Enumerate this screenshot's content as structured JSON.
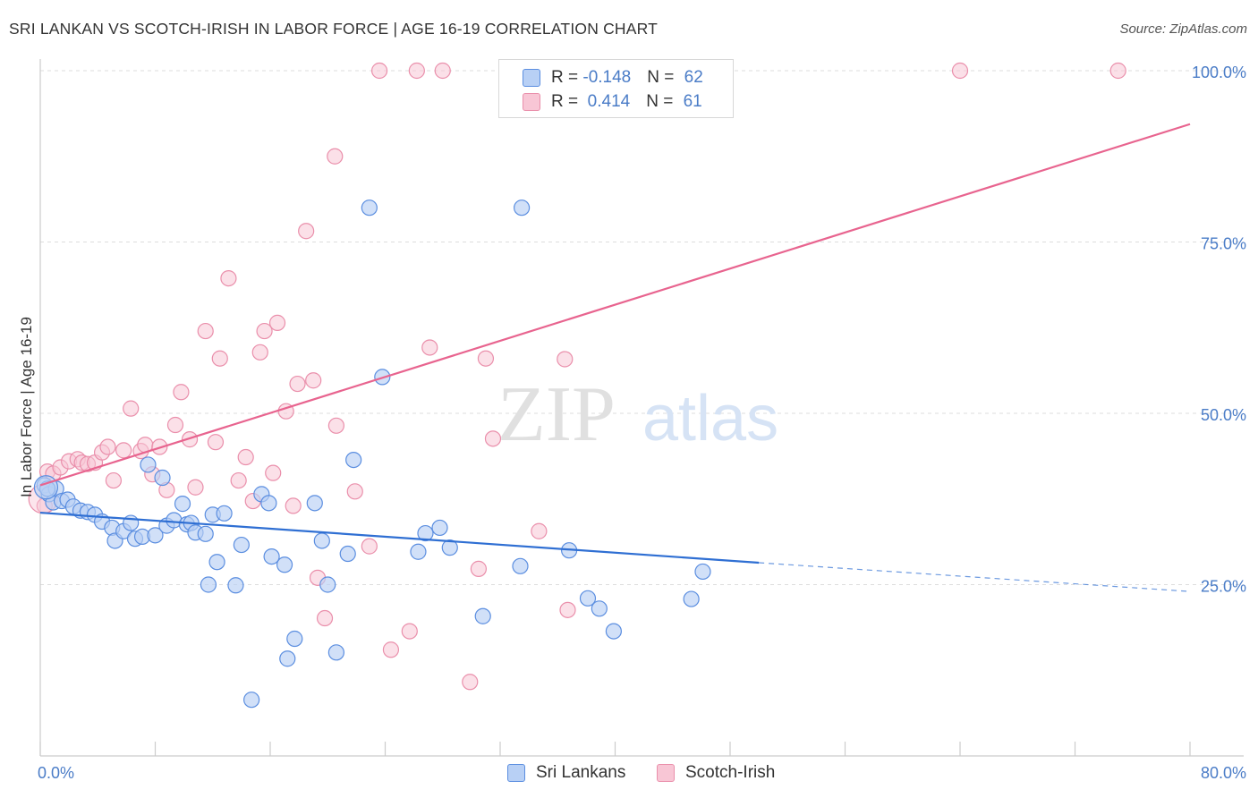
{
  "title": "SRI LANKAN VS SCOTCH-IRISH IN LABOR FORCE | AGE 16-19 CORRELATION CHART",
  "source": "Source: ZipAtlas.com",
  "watermark": {
    "zip": "ZIP",
    "atlas": "atlas"
  },
  "legend": {
    "rows": [
      {
        "r_label": "R = ",
        "r_value": "-0.148",
        "n_label": "N = ",
        "n_value": "62"
      },
      {
        "r_label": "R = ",
        "r_value": " 0.414",
        "n_label": "N = ",
        "n_value": "61"
      }
    ]
  },
  "bottom_legend": [
    "Sri Lankans",
    "Scotch-Irish"
  ],
  "colors": {
    "blue_fill": "#b8d0f5",
    "blue_stroke": "#5b8ee0",
    "blue_line": "#2f6fd3",
    "pink_fill": "#f8c6d5",
    "pink_stroke": "#ea8fab",
    "pink_line": "#e8648f",
    "grid": "#dddddd",
    "tick_text": "#4a7cc7"
  },
  "chart_data": {
    "type": "scatter",
    "title": "SRI LANKAN VS SCOTCH-IRISH IN LABOR FORCE | AGE 16-19 CORRELATION CHART",
    "xlabel": "",
    "ylabel": "In Labor Force | Age 16-19",
    "xlim": [
      0,
      80
    ],
    "ylim": [
      0,
      105
    ],
    "x_tick_labels": [
      "0.0%",
      "80.0%"
    ],
    "y_ticks": [
      25,
      50,
      75,
      100
    ],
    "y_tick_labels": [
      "25.0%",
      "50.0%",
      "75.0%",
      "100.0%"
    ],
    "grid": "horizontal dashed",
    "series": [
      {
        "name": "Sri Lankans",
        "r": -0.148,
        "n": 62,
        "trend": {
          "x0": 0,
          "y0": 35.5,
          "x1": 50,
          "y1": 28.2,
          "dash_x1": 80,
          "dash_y1": 24.0
        },
        "points": [
          [
            0.3,
            39.5
          ],
          [
            0.6,
            38.2
          ],
          [
            0.9,
            37.0
          ],
          [
            1.1,
            39.0
          ],
          [
            1.5,
            37.2
          ],
          [
            1.9,
            37.4
          ],
          [
            2.3,
            36.4
          ],
          [
            2.8,
            35.8
          ],
          [
            3.3,
            35.6
          ],
          [
            3.8,
            35.2
          ],
          [
            4.3,
            34.2
          ],
          [
            5.0,
            33.3
          ],
          [
            5.2,
            31.4
          ],
          [
            5.8,
            32.8
          ],
          [
            6.3,
            34.0
          ],
          [
            6.6,
            31.7
          ],
          [
            7.1,
            32.0
          ],
          [
            7.5,
            42.5
          ],
          [
            8.0,
            32.2
          ],
          [
            8.5,
            40.6
          ],
          [
            8.8,
            33.6
          ],
          [
            9.3,
            34.4
          ],
          [
            9.9,
            36.8
          ],
          [
            10.2,
            33.8
          ],
          [
            10.5,
            34.0
          ],
          [
            10.8,
            32.6
          ],
          [
            11.5,
            32.4
          ],
          [
            12.0,
            35.2
          ],
          [
            12.8,
            35.4
          ],
          [
            12.3,
            28.3
          ],
          [
            11.7,
            25.0
          ],
          [
            13.6,
            24.9
          ],
          [
            14.0,
            30.8
          ],
          [
            15.4,
            38.2
          ],
          [
            15.9,
            36.9
          ],
          [
            16.1,
            29.1
          ],
          [
            17.0,
            27.9
          ],
          [
            17.7,
            17.1
          ],
          [
            17.2,
            14.2
          ],
          [
            19.1,
            36.9
          ],
          [
            19.6,
            31.4
          ],
          [
            20.0,
            25.0
          ],
          [
            20.6,
            15.1
          ],
          [
            21.4,
            29.5
          ],
          [
            21.8,
            43.2
          ],
          [
            14.7,
            8.2
          ],
          [
            22.9,
            80.0
          ],
          [
            23.8,
            55.3
          ],
          [
            26.3,
            29.8
          ],
          [
            26.8,
            32.5
          ],
          [
            27.8,
            33.3
          ],
          [
            28.5,
            30.4
          ],
          [
            30.8,
            20.4
          ],
          [
            33.5,
            80.0
          ],
          [
            33.4,
            27.7
          ],
          [
            36.8,
            30.0
          ],
          [
            38.1,
            23.0
          ],
          [
            38.9,
            21.5
          ],
          [
            39.9,
            18.2
          ],
          [
            45.3,
            22.9
          ],
          [
            46.1,
            26.9
          ],
          [
            0.5,
            39.0
          ]
        ]
      },
      {
        "name": "Scotch-Irish",
        "r": 0.414,
        "n": 61,
        "trend": {
          "x0": 0,
          "y0": 39.5,
          "x1": 80,
          "y1": 92.2
        },
        "points": [
          [
            0.3,
            36.5
          ],
          [
            0.5,
            41.5
          ],
          [
            0.9,
            41.2
          ],
          [
            1.4,
            42.1
          ],
          [
            2.0,
            43.0
          ],
          [
            2.6,
            43.3
          ],
          [
            2.9,
            42.8
          ],
          [
            3.3,
            42.6
          ],
          [
            3.8,
            42.8
          ],
          [
            4.3,
            44.3
          ],
          [
            4.7,
            45.1
          ],
          [
            5.1,
            40.2
          ],
          [
            5.8,
            44.6
          ],
          [
            6.3,
            50.7
          ],
          [
            7.0,
            44.5
          ],
          [
            7.3,
            45.4
          ],
          [
            7.8,
            41.1
          ],
          [
            8.3,
            45.1
          ],
          [
            8.8,
            38.8
          ],
          [
            9.4,
            48.3
          ],
          [
            9.8,
            53.1
          ],
          [
            10.4,
            46.2
          ],
          [
            10.8,
            39.2
          ],
          [
            11.5,
            62.0
          ],
          [
            12.2,
            45.8
          ],
          [
            12.5,
            58.0
          ],
          [
            13.1,
            69.7
          ],
          [
            13.8,
            40.2
          ],
          [
            14.3,
            43.6
          ],
          [
            14.8,
            37.2
          ],
          [
            15.3,
            58.9
          ],
          [
            15.6,
            62.0
          ],
          [
            16.2,
            41.3
          ],
          [
            16.5,
            63.2
          ],
          [
            17.1,
            50.3
          ],
          [
            17.6,
            36.5
          ],
          [
            17.9,
            54.3
          ],
          [
            18.5,
            76.6
          ],
          [
            19.0,
            54.8
          ],
          [
            19.3,
            26.0
          ],
          [
            19.8,
            20.1
          ],
          [
            20.5,
            87.5
          ],
          [
            20.6,
            48.2
          ],
          [
            21.9,
            38.6
          ],
          [
            22.9,
            30.6
          ],
          [
            23.6,
            100.0
          ],
          [
            24.4,
            15.5
          ],
          [
            25.7,
            18.2
          ],
          [
            26.2,
            100.0
          ],
          [
            27.1,
            59.6
          ],
          [
            28.0,
            100.0
          ],
          [
            29.9,
            10.8
          ],
          [
            30.5,
            27.3
          ],
          [
            31.0,
            58.0
          ],
          [
            31.5,
            46.3
          ],
          [
            33.2,
            100.0
          ],
          [
            34.7,
            32.8
          ],
          [
            36.5,
            57.9
          ],
          [
            36.7,
            21.3
          ],
          [
            64.0,
            100.0
          ],
          [
            75.0,
            100.0
          ]
        ]
      }
    ]
  }
}
